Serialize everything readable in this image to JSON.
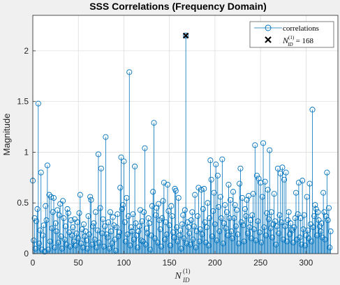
{
  "chart_data": {
    "type": "stem",
    "title": "SSS Correlations (Frequency Domain)",
    "xlabel": {
      "base": "N",
      "sub": "ID",
      "sup": "(1)"
    },
    "ylabel": "Magnitude",
    "xlim": [
      0,
      335
    ],
    "ylim": [
      0,
      2.35
    ],
    "xticks": [
      0,
      50,
      100,
      150,
      200,
      250,
      300
    ],
    "xtick_labels": [
      "0",
      "50",
      "100",
      "150",
      "200",
      "250",
      "300"
    ],
    "yticks": [
      0,
      0.5,
      1,
      1.5,
      2
    ],
    "ytick_labels": [
      "0",
      "0.5",
      "1",
      "1.5",
      "2"
    ],
    "grid": true,
    "legend_position": "top-right",
    "series": [
      {
        "name": "correlations",
        "color": "#0072BD",
        "x_start": 0,
        "values": [
          0.72,
          0.13,
          0.35,
          0.05,
          0.32,
          0.44,
          1.48,
          0.1,
          0.23,
          0.8,
          0.04,
          0.18,
          0.28,
          0.02,
          0.47,
          0.33,
          0.87,
          0.04,
          0.58,
          0.12,
          0.56,
          0.25,
          0.41,
          0.55,
          0.06,
          0.3,
          0.22,
          0.43,
          0.11,
          0.38,
          0.49,
          0.17,
          0.05,
          0.52,
          0.35,
          0.14,
          0.27,
          0.09,
          0.44,
          0.4,
          0.21,
          0.07,
          0.33,
          0.18,
          0.26,
          0.12,
          0.34,
          0.08,
          0.2,
          0.31,
          0.15,
          0.4,
          0.58,
          0.1,
          0.24,
          0.06,
          0.29,
          0.17,
          0.22,
          0.13,
          0.05,
          0.37,
          0.19,
          0.56,
          0.53,
          0.09,
          0.27,
          0.3,
          0.14,
          0.41,
          0.06,
          0.23,
          0.98,
          0.11,
          0.45,
          0.84,
          0.2,
          0.34,
          0.07,
          0.27,
          1.15,
          0.19,
          0.16,
          0.31,
          0.05,
          0.41,
          0.22,
          0.1,
          0.36,
          0.28,
          0.14,
          0.03,
          0.26,
          0.39,
          0.17,
          0.21,
          0.65,
          0.95,
          0.44,
          0.48,
          0.91,
          0.31,
          0.12,
          0.55,
          0.19,
          0.37,
          1.79,
          0.08,
          0.26,
          0.22,
          0.39,
          0.14,
          0.86,
          0.3,
          0.18,
          0.06,
          0.22,
          0.27,
          0.43,
          0.13,
          0.32,
          0.12,
          0.41,
          1.04,
          0.09,
          0.25,
          0.2,
          0.35,
          0.3,
          0.04,
          0.18,
          0.47,
          0.61,
          1.29,
          0.15,
          0.38,
          0.45,
          0.11,
          0.49,
          0.33,
          0.24,
          0.07,
          0.35,
          0.52,
          0.7,
          0.14,
          0.31,
          0.19,
          0.68,
          0.42,
          0.28,
          0.08,
          0.47,
          0.37,
          0.21,
          0.16,
          0.64,
          0.62,
          0.26,
          0.12,
          0.55,
          0.18,
          0.23,
          0.05,
          0.29,
          0.38,
          0.15,
          0.43,
          2.15,
          0.1,
          0.31,
          0.26,
          0.2,
          0.09,
          0.33,
          0.41,
          0.14,
          0.27,
          0.58,
          0.06,
          0.22,
          0.37,
          0.65,
          0.12,
          0.24,
          0.63,
          0.19,
          0.44,
          0.64,
          0.31,
          0.11,
          0.26,
          0.5,
          0.08,
          0.35,
          0.92,
          0.73,
          0.17,
          0.42,
          0.6,
          0.29,
          0.88,
          0.13,
          0.77,
          0.46,
          0.22,
          0.56,
          0.35,
          0.93,
          0.1,
          0.3,
          0.48,
          0.25,
          0.41,
          0.18,
          0.68,
          0.35,
          0.53,
          0.22,
          0.15,
          0.61,
          0.35,
          0.48,
          0.27,
          0.43,
          0.19,
          0.1,
          0.69,
          0.84,
          0.31,
          0.55,
          0.28,
          0.12,
          0.44,
          0.37,
          0.53,
          0.2,
          0.57,
          0.26,
          0.33,
          0.15,
          0.38,
          0.59,
          0.24,
          1.07,
          0.13,
          0.77,
          0.32,
          0.74,
          0.21,
          0.7,
          0.11,
          0.56,
          1.09,
          0.26,
          0.71,
          0.18,
          0.4,
          0.63,
          0.34,
          1.02,
          0.25,
          0.41,
          0.16,
          0.29,
          0.59,
          0.32,
          0.09,
          0.27,
          0.84,
          0.2,
          0.38,
          0.79,
          0.31,
          0.85,
          0.14,
          0.73,
          0.27,
          0.8,
          0.12,
          0.33,
          0.41,
          0.19,
          0.3,
          0.24,
          0.23,
          0.11,
          0.26,
          0.35,
          0.6,
          0.14,
          0.39,
          0.7,
          0.16,
          0.35,
          0.09,
          0.72,
          0.24,
          0.38,
          0.08,
          0.18,
          0.56,
          0.23,
          0.15,
          0.69,
          0.29,
          0.12,
          1.42,
          0.26,
          0.37,
          0.48,
          0.44,
          0.18,
          0.41,
          0.33,
          0.27,
          0.22,
          0.3,
          0.16,
          0.6,
          0.41,
          0.14,
          0.37,
          0.8,
          0.33,
          0.45,
          0.06,
          0.22
        ]
      }
    ],
    "marker": {
      "name_base": "N",
      "name_sub": "ID",
      "name_sup": "(1)",
      "name_eq": "= 168",
      "x": 168,
      "y": 2.15,
      "symbol": "x",
      "color": "#000000"
    }
  }
}
